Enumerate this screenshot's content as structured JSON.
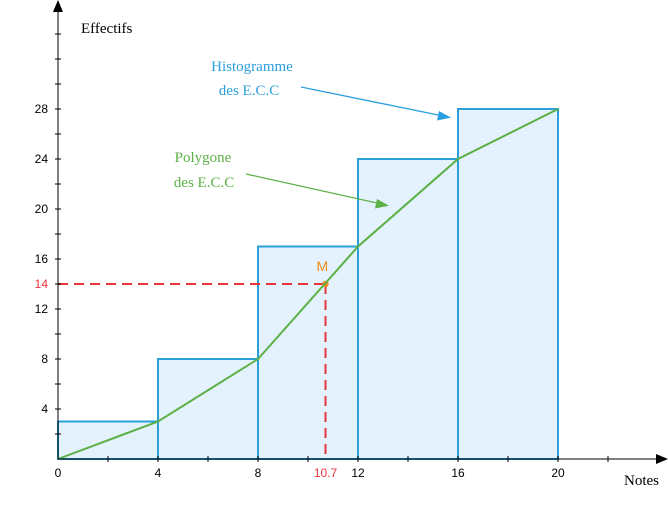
{
  "chart_data": {
    "type": "histogram",
    "xlabel": "Notes",
    "ylabel": "Effectifs",
    "xlim": [
      0,
      24.2
    ],
    "ylim": [
      0,
      36.4
    ],
    "x_ticks": [
      0,
      4,
      8,
      12,
      16,
      20
    ],
    "y_ticks": [
      4,
      8,
      12,
      16,
      20,
      24,
      28
    ],
    "bins": [
      {
        "from": 0,
        "to": 4,
        "value": 3
      },
      {
        "from": 4,
        "to": 8,
        "value": 8
      },
      {
        "from": 8,
        "to": 12,
        "value": 17
      },
      {
        "from": 12,
        "to": 16,
        "value": 24
      },
      {
        "from": 16,
        "to": 20,
        "value": 28
      }
    ],
    "polygon": {
      "x": [
        0,
        4,
        8,
        12,
        16,
        20
      ],
      "y": [
        0,
        3,
        8,
        17,
        24,
        28
      ]
    },
    "point_M": {
      "label": "M",
      "x": 10.7,
      "y": 14,
      "x_label": "10.7",
      "y_label": "14"
    },
    "annotations": {
      "histogram": [
        "Histogramme",
        "des E.C.C"
      ],
      "polygon": [
        "Polygone",
        "des E.C.C"
      ]
    },
    "colors": {
      "histogram_fill": "#e3f2fc",
      "histogram_stroke": "#2a9fd8",
      "histogram_label": "#2b9fe0",
      "polygon_line": "#5cb046",
      "point": "#f08a1c",
      "guide": "#e8363a",
      "axis": "#000000"
    }
  }
}
